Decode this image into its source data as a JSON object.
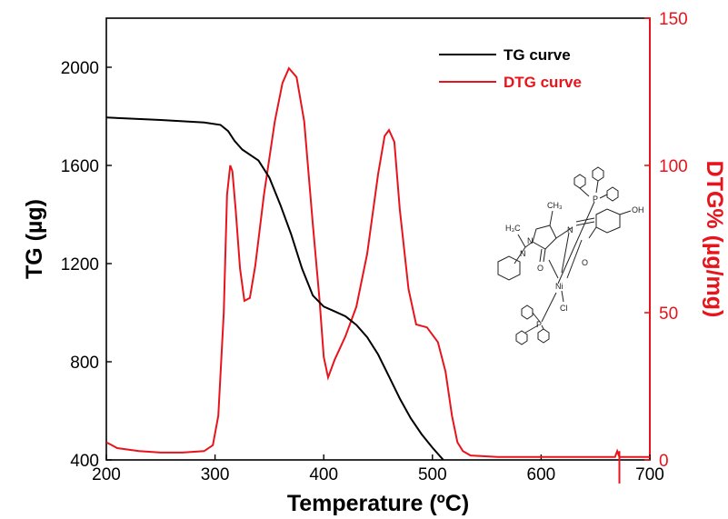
{
  "chart_data": {
    "type": "line",
    "xlabel": "Temperature (ºC)",
    "ylabel_left": "TG (µg)",
    "ylabel_right": "DTG% (µg/mg)",
    "xlim": [
      200,
      700
    ],
    "ylim_left": [
      400,
      2200
    ],
    "ylim_right": [
      0,
      150
    ],
    "x_ticks": [
      200,
      300,
      400,
      500,
      600,
      700
    ],
    "y_ticks_left": [
      400,
      800,
      1200,
      1600,
      2000
    ],
    "y_ticks_right": [
      0,
      50,
      100,
      150
    ],
    "colors": {
      "tg": "#000000",
      "dtg": "#e8141c"
    },
    "legend_position": "top-right",
    "series": [
      {
        "name": "TG curve",
        "axis": "left",
        "points": [
          [
            200,
            1795
          ],
          [
            250,
            1785
          ],
          [
            290,
            1775
          ],
          [
            305,
            1765
          ],
          [
            312,
            1740
          ],
          [
            318,
            1700
          ],
          [
            325,
            1665
          ],
          [
            340,
            1620
          ],
          [
            350,
            1550
          ],
          [
            360,
            1440
          ],
          [
            370,
            1320
          ],
          [
            380,
            1180
          ],
          [
            390,
            1070
          ],
          [
            400,
            1025
          ],
          [
            410,
            1005
          ],
          [
            420,
            985
          ],
          [
            430,
            950
          ],
          [
            440,
            900
          ],
          [
            450,
            830
          ],
          [
            460,
            740
          ],
          [
            470,
            650
          ],
          [
            480,
            570
          ],
          [
            490,
            505
          ],
          [
            500,
            450
          ],
          [
            510,
            400
          ]
        ]
      },
      {
        "name": "DTG curve",
        "axis": "right",
        "points": [
          [
            200,
            6
          ],
          [
            205,
            5
          ],
          [
            210,
            4
          ],
          [
            230,
            3
          ],
          [
            250,
            2.5
          ],
          [
            270,
            2.5
          ],
          [
            290,
            3
          ],
          [
            298,
            5
          ],
          [
            303,
            15
          ],
          [
            308,
            50
          ],
          [
            311,
            90
          ],
          [
            314,
            100
          ],
          [
            316,
            98
          ],
          [
            319,
            85
          ],
          [
            323,
            65
          ],
          [
            327,
            54
          ],
          [
            332,
            55
          ],
          [
            337,
            66
          ],
          [
            345,
            90
          ],
          [
            355,
            115
          ],
          [
            362,
            128
          ],
          [
            368,
            133
          ],
          [
            375,
            130
          ],
          [
            382,
            115
          ],
          [
            390,
            80
          ],
          [
            396,
            55
          ],
          [
            400,
            35
          ],
          [
            404,
            28
          ],
          [
            410,
            34
          ],
          [
            420,
            42
          ],
          [
            430,
            52
          ],
          [
            440,
            70
          ],
          [
            450,
            97
          ],
          [
            456,
            110
          ],
          [
            460,
            112
          ],
          [
            465,
            108
          ],
          [
            470,
            85
          ],
          [
            478,
            58
          ],
          [
            485,
            46
          ],
          [
            495,
            45
          ],
          [
            505,
            40
          ],
          [
            512,
            30
          ],
          [
            518,
            15
          ],
          [
            523,
            6
          ],
          [
            528,
            3
          ],
          [
            535,
            1.5
          ],
          [
            560,
            1
          ],
          [
            600,
            1
          ],
          [
            650,
            1
          ],
          [
            668,
            1
          ],
          [
            670,
            3
          ],
          [
            672,
            1
          ],
          [
            700,
            1
          ]
        ]
      }
    ],
    "annotations": [
      {
        "type": "vertical-tick",
        "x": 672,
        "from": -8,
        "to": 3
      }
    ]
  },
  "molecule": {
    "icon": "ni-complex-structure-icon",
    "labels": {
      "ch3_top": "CH₃",
      "h3c": "H₃C",
      "n1": "N",
      "n2": "N",
      "n3": "N",
      "o_carbonyl": "O",
      "oh": "OH",
      "ni": "Ni",
      "o_ni": "O",
      "p_top": "P",
      "p_bottom": "P",
      "cl": "Cl"
    }
  }
}
